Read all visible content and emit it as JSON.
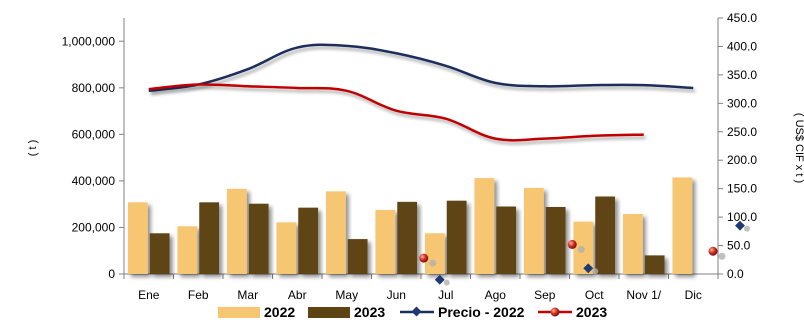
{
  "chart_data": {
    "type": "bar",
    "title": "",
    "categories": [
      "Ene",
      "Feb",
      "Mar",
      "Abr",
      "May",
      "Jun",
      "Jul",
      "Ago",
      "Sep",
      "Oct",
      "Nov 1/",
      "Dic"
    ],
    "left_axis": {
      "label": "( t )",
      "ylim": [
        0,
        1100000
      ],
      "ticks": [
        0,
        200000,
        400000,
        600000,
        800000,
        1000000
      ],
      "tick_labels": [
        "0",
        "200,000",
        "400,000",
        "600,000",
        "800,000",
        "1,000,000"
      ]
    },
    "right_axis": {
      "label": "( US$ CIF x t )",
      "ylim": [
        0,
        450
      ],
      "ticks": [
        0,
        50,
        100,
        150,
        200,
        250,
        300,
        350,
        400,
        450
      ],
      "tick_labels": [
        "0.0",
        "50.0",
        "100.0",
        "150.0",
        "200.0",
        "250.0",
        "300.0",
        "350.0",
        "400.0",
        "450.0"
      ]
    },
    "bar_series": [
      {
        "name": "2022",
        "color": "#F7C672",
        "values": [
          308000,
          205000,
          366000,
          222000,
          355000,
          275000,
          175000,
          412000,
          370000,
          225000,
          258000,
          415000
        ]
      },
      {
        "name": "2023",
        "color": "#5E4412",
        "values": [
          175000,
          308000,
          302000,
          285000,
          150000,
          310000,
          315000,
          290000,
          288000,
          333000,
          80000,
          null
        ]
      }
    ],
    "line_series": [
      {
        "name": "Precio - 2022",
        "color": "#1F2F5C",
        "values": [
          322,
          333,
          360,
          398,
          401,
          388,
          366,
          336,
          330,
          332,
          332,
          327
        ]
      },
      {
        "name": "2023",
        "color": "#C00000",
        "values": [
          325,
          333,
          330,
          327,
          322,
          287,
          273,
          238,
          238,
          243,
          245,
          null
        ]
      }
    ],
    "legend": {
      "position": "bottom",
      "items": [
        "2022",
        "2023",
        "Precio - 2022",
        "2023"
      ]
    },
    "stray_markers": [
      {
        "series": "Precio - 2022",
        "category": "Jul",
        "value": -10
      },
      {
        "series": "Precio - 2022",
        "category": "Oct",
        "value": 10
      },
      {
        "series": "Precio - 2022",
        "category": "Dic",
        "value": 85
      },
      {
        "series": "2023",
        "category": "Jul",
        "value": 28
      },
      {
        "series": "2023",
        "category": "Oct",
        "value": 52
      },
      {
        "series": "2023",
        "category": "Dic",
        "value": 40
      }
    ]
  }
}
